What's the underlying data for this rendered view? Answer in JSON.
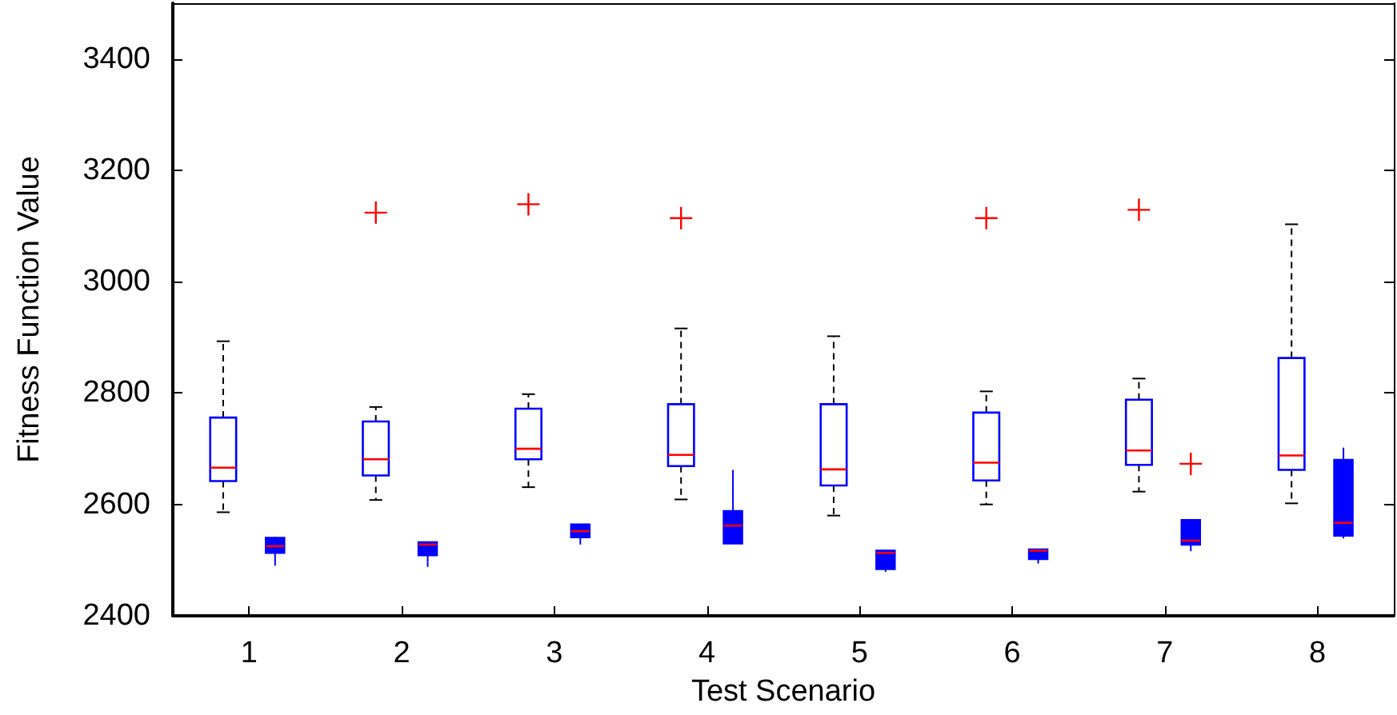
{
  "chart_data": {
    "type": "box",
    "xlabel": "Test Scenario",
    "ylabel": "Fitness Function Value",
    "categories": [
      "1",
      "2",
      "3",
      "4",
      "5",
      "6",
      "7",
      "8"
    ],
    "ylim": [
      2400,
      3500
    ],
    "yticks": [
      2400,
      2600,
      2800,
      3000,
      3200,
      3400
    ],
    "grid": false,
    "marker": "cross",
    "series": [
      {
        "color": "#0000ff",
        "line_style": "dashed",
        "boxes": [
          {
            "low": 2586,
            "q1": 2642,
            "median": 2666,
            "q3": 2756,
            "high": 2893
          },
          {
            "low": 2608,
            "q1": 2652,
            "median": 2681,
            "q3": 2749,
            "high": 2775,
            "outliers": [
              3124
            ]
          },
          {
            "low": 2631,
            "q1": 2681,
            "median": 2700,
            "q3": 2772,
            "high": 2798,
            "outliers": [
              3139
            ]
          },
          {
            "low": 2609,
            "q1": 2669,
            "median": 2689,
            "q3": 2780,
            "high": 2916,
            "outliers": [
              3114
            ]
          },
          {
            "low": 2580,
            "q1": 2634,
            "median": 2663,
            "q3": 2780,
            "high": 2902
          },
          {
            "low": 2600,
            "q1": 2643,
            "median": 2675,
            "q3": 2765,
            "high": 2803,
            "outliers": [
              3114
            ]
          },
          {
            "low": 2623,
            "q1": 2671,
            "median": 2697,
            "q3": 2788,
            "high": 2826,
            "outliers": [
              3129
            ]
          },
          {
            "low": 2602,
            "q1": 2662,
            "median": 2688,
            "q3": 2863,
            "high": 3103
          }
        ]
      },
      {
        "color": "#0000ff",
        "line_style": "solid",
        "boxes": [
          {
            "low": 2490,
            "q1": 2513,
            "median": 2525,
            "q3": 2540,
            "high": 2542
          },
          {
            "low": 2488,
            "q1": 2509,
            "median": 2528,
            "q3": 2532,
            "high": 2533
          },
          {
            "low": 2528,
            "q1": 2541,
            "median": 2552,
            "q3": 2564,
            "high": 2565
          },
          {
            "low": 2529,
            "q1": 2530,
            "median": 2562,
            "q3": 2588,
            "high": 2662
          },
          {
            "low": 2479,
            "q1": 2484,
            "median": 2513,
            "q3": 2517,
            "high": 2518
          },
          {
            "low": 2494,
            "q1": 2502,
            "median": 2517,
            "q3": 2519,
            "high": 2520
          },
          {
            "low": 2516,
            "q1": 2528,
            "median": 2535,
            "q3": 2572,
            "high": 2573,
            "outliers": [
              2673
            ]
          },
          {
            "low": 2539,
            "q1": 2544,
            "median": 2567,
            "q3": 2680,
            "high": 2702
          }
        ]
      }
    ]
  }
}
